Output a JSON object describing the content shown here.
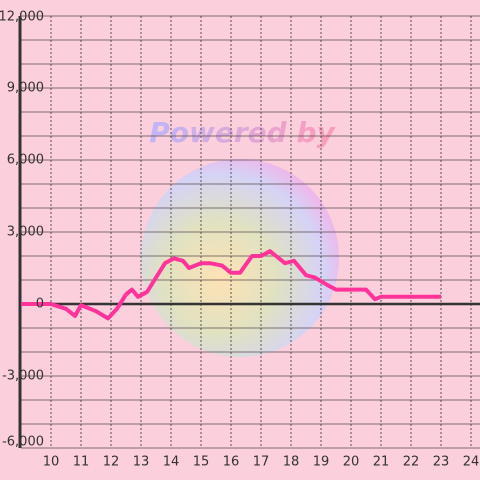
{
  "chart_data": {
    "type": "line",
    "watermark": "Powered by",
    "x": [
      9,
      9.5,
      10,
      10.5,
      10.8,
      11,
      11.5,
      11.9,
      12.2,
      12.5,
      12.7,
      12.9,
      13.2,
      13.5,
      13.8,
      14.1,
      14.4,
      14.6,
      15,
      15.3,
      15.7,
      16,
      16.3,
      16.7,
      17,
      17.3,
      17.5,
      17.8,
      18.1,
      18.5,
      18.8,
      19.2,
      19.5,
      20,
      20.5,
      20.8,
      21,
      21.5,
      22,
      23
    ],
    "series": [
      {
        "color": "#ff3399",
        "values": [
          0,
          0,
          0,
          -200,
          -500,
          -50,
          -300,
          -600,
          -200,
          400,
          600,
          300,
          500,
          1100,
          1700,
          1900,
          1800,
          1500,
          1700,
          1700,
          1600,
          1300,
          1300,
          2000,
          2000,
          2200,
          2000,
          1700,
          1800,
          1200,
          1100,
          800,
          600,
          600,
          600,
          200,
          300,
          300,
          300,
          300
        ]
      }
    ],
    "xlim": [
      9,
      24.3
    ],
    "xticks": [
      10,
      11,
      12,
      13,
      14,
      15,
      16,
      17,
      18,
      19,
      20,
      21,
      22,
      23,
      24
    ],
    "ylim": [
      -6000,
      12000
    ],
    "yticks": [
      {
        "value": 12000,
        "label": "12,000"
      },
      {
        "value": 9000,
        "label": "9,000"
      },
      {
        "value": 6000,
        "label": "6,000"
      },
      {
        "value": 3000,
        "label": "3,000"
      },
      0,
      {
        "value": -3000,
        "label": "-3,000"
      },
      {
        "value": -6000,
        "label": "-6,000"
      }
    ],
    "yminor": [
      11000,
      10000,
      8000,
      7000,
      5000,
      4000,
      2000,
      1000,
      -1000,
      -2000,
      -4000,
      -5000
    ],
    "grid": true
  }
}
